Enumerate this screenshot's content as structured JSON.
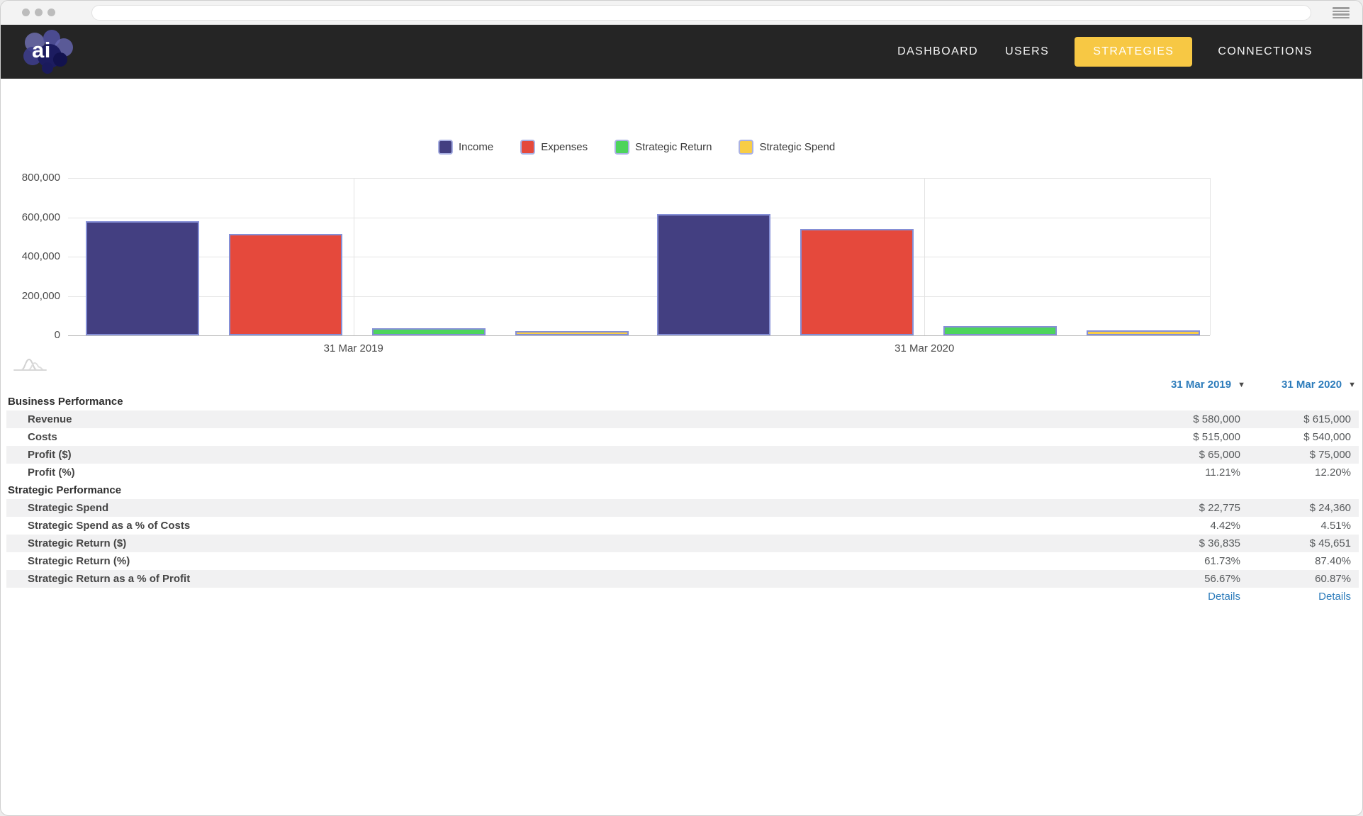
{
  "browser": {
    "url_value": ""
  },
  "nav": {
    "logo_text": "ai",
    "items": [
      {
        "label": "DASHBOARD",
        "active": false
      },
      {
        "label": "USERS",
        "active": false
      },
      {
        "label": "STRATEGIES",
        "active": true
      },
      {
        "label": "CONNECTIONS",
        "active": false
      }
    ]
  },
  "colors": {
    "accent_yellow": "#f7c844",
    "link_blue": "#2d7cbb",
    "bar_border": "#858fd6",
    "legend_swatch_border": "#a9b1e3"
  },
  "chart_data": {
    "type": "bar",
    "categories": [
      "31 Mar 2019",
      "31 Mar 2020"
    ],
    "series": [
      {
        "name": "Income",
        "color": "#433f81",
        "values": [
          580000,
          615000
        ]
      },
      {
        "name": "Expenses",
        "color": "#e5493c",
        "values": [
          515000,
          540000
        ]
      },
      {
        "name": "Strategic Return",
        "color": "#4dd45c",
        "values": [
          36835,
          45651
        ]
      },
      {
        "name": "Strategic Spend",
        "color": "#f8cd46",
        "values": [
          22775,
          24360
        ]
      }
    ],
    "title": "",
    "xlabel": "",
    "ylabel": "",
    "ylim": [
      0,
      800000
    ],
    "ytick_interval": 200000,
    "ytick_labels": [
      "0",
      "200,000",
      "400,000",
      "600,000",
      "800,000"
    ],
    "grid": true,
    "legend_position": "top"
  },
  "table": {
    "column_headers": [
      "31 Mar 2019",
      "31 Mar 2020"
    ],
    "sections": [
      {
        "title": "Business Performance",
        "rows": [
          {
            "label": "Revenue",
            "values": [
              "$ 580,000",
              "$ 615,000"
            ]
          },
          {
            "label": "Costs",
            "values": [
              "$ 515,000",
              "$ 540,000"
            ]
          },
          {
            "label": "Profit ($)",
            "values": [
              "$ 65,000",
              "$ 75,000"
            ]
          },
          {
            "label": "Profit (%)",
            "values": [
              "11.21%",
              "12.20%"
            ]
          }
        ]
      },
      {
        "title": "Strategic Performance",
        "rows": [
          {
            "label": "Strategic Spend",
            "values": [
              "$ 22,775",
              "$ 24,360"
            ]
          },
          {
            "label": "Strategic Spend as a % of Costs",
            "values": [
              "4.42%",
              "4.51%"
            ]
          },
          {
            "label": "Strategic Return ($)",
            "values": [
              "$ 36,835",
              "$ 45,651"
            ]
          },
          {
            "label": "Strategic Return (%)",
            "values": [
              "61.73%",
              "87.40%"
            ]
          },
          {
            "label": "Strategic Return as a % of Profit",
            "values": [
              "56.67%",
              "60.87%"
            ]
          }
        ]
      }
    ],
    "details_label": "Details"
  }
}
